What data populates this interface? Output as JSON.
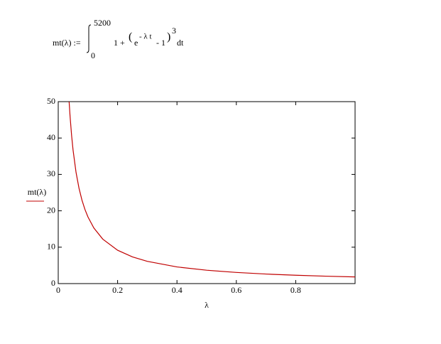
{
  "formula": {
    "lhs": "mt(λ) :=",
    "upper": "5200",
    "lower": "0",
    "body": "1 +",
    "base": "e",
    "exponent": "- λ t",
    "minus": "- 1",
    "power": "3",
    "dt": "dt"
  },
  "chart_data": {
    "type": "line",
    "xlabel": "λ",
    "x": [
      0.0367,
      0.04,
      0.045,
      0.05,
      0.06,
      0.07,
      0.08,
      0.09,
      0.1,
      0.12,
      0.15,
      0.2,
      0.25,
      0.3,
      0.4,
      0.5,
      0.6,
      0.7,
      0.8,
      0.9,
      1.0
    ],
    "series": [
      {
        "name": "mt(λ)",
        "color": "#c00000",
        "values": [
          49.95,
          45.83,
          40.74,
          36.67,
          30.56,
          26.19,
          22.92,
          20.37,
          18.33,
          15.28,
          12.22,
          9.17,
          7.33,
          6.11,
          4.58,
          3.67,
          3.06,
          2.62,
          2.29,
          2.04,
          1.83
        ]
      }
    ],
    "xlim": [
      0,
      1
    ],
    "ylim": [
      0,
      50
    ],
    "xticks": [
      0,
      0.2,
      0.4,
      0.6,
      0.8
    ],
    "yticks": [
      0,
      10,
      20,
      30,
      40,
      50
    ]
  }
}
